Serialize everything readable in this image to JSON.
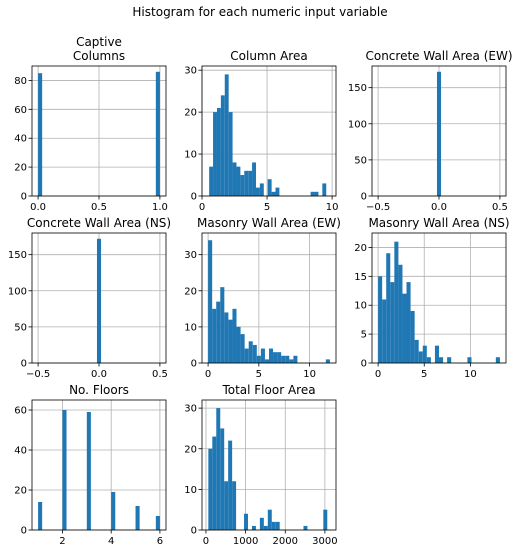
{
  "suptitle": "Histogram for each numeric input variable",
  "colors": {
    "bar": "#1f77b4",
    "grid": "#b0b0b0",
    "axis": "#000000"
  },
  "chart_data": [
    {
      "type": "bar",
      "title_lines": [
        "Captive",
        "Columns"
      ],
      "bins": {
        "start": 0,
        "width": 0.033333
      },
      "counts": [
        85,
        0,
        0,
        0,
        0,
        0,
        0,
        0,
        0,
        0,
        0,
        0,
        0,
        0,
        0,
        0,
        0,
        0,
        0,
        0,
        0,
        0,
        0,
        0,
        0,
        0,
        0,
        0,
        0,
        86
      ],
      "xlim": [
        -0.05,
        1.05
      ],
      "ylim": [
        0,
        90
      ],
      "xticks": [
        0.0,
        0.5,
        1.0
      ],
      "xtick_labels": [
        "0.0",
        "0.5",
        "1.0"
      ],
      "yticks": [
        0,
        20,
        40,
        60,
        80
      ],
      "ytick_labels": [
        "0",
        "20",
        "40",
        "60",
        "80"
      ],
      "grid": true
    },
    {
      "type": "bar",
      "title_lines": [
        "Column Area"
      ],
      "bins": {
        "start": 0.55,
        "width": 0.3
      },
      "counts": [
        7,
        20,
        21,
        24,
        29,
        20,
        8,
        7,
        5,
        6,
        6,
        8,
        2,
        3,
        0,
        4,
        1,
        2,
        0,
        0,
        0,
        0,
        0,
        0,
        0,
        0,
        1,
        1,
        0,
        3
      ],
      "xlim": [
        0,
        10.3
      ],
      "ylim": [
        0,
        31
      ],
      "xticks": [
        0,
        5,
        10
      ],
      "xtick_labels": [
        "0",
        "5",
        "10"
      ],
      "yticks": [
        0,
        10,
        20,
        30
      ],
      "ytick_labels": [
        "0",
        "10",
        "20",
        "30"
      ],
      "grid": true
    },
    {
      "type": "bar",
      "title_lines": [
        "Concrete Wall Area (EW)"
      ],
      "bins": {
        "start": -0.016667,
        "width": 0.033333
      },
      "counts": [
        172
      ],
      "xlim": [
        -0.55,
        0.55
      ],
      "ylim": [
        0,
        180
      ],
      "xticks": [
        -0.5,
        0.0,
        0.5
      ],
      "xtick_labels": [
        "−0.5",
        "0.0",
        "0.5"
      ],
      "yticks": [
        0,
        50,
        100,
        150
      ],
      "ytick_labels": [
        "0",
        "50",
        "100",
        "150"
      ],
      "grid": true
    },
    {
      "type": "bar",
      "title_lines": [
        "Concrete Wall Area (NS)"
      ],
      "bins": {
        "start": -0.016667,
        "width": 0.033333
      },
      "counts": [
        172
      ],
      "xlim": [
        -0.55,
        0.55
      ],
      "ylim": [
        0,
        180
      ],
      "xticks": [
        -0.5,
        0.0,
        0.5
      ],
      "xtick_labels": [
        "−0.5",
        "0.0",
        "0.5"
      ],
      "yticks": [
        0,
        50,
        100,
        150
      ],
      "ytick_labels": [
        "0",
        "50",
        "100",
        "150"
      ],
      "grid": true
    },
    {
      "type": "bar",
      "title_lines": [
        "Masonry Wall Area (EW)"
      ],
      "bins": {
        "start": 0,
        "width": 0.4
      },
      "counts": [
        34,
        15,
        17,
        21,
        14,
        12,
        15,
        10,
        8,
        4,
        6,
        5,
        2,
        4,
        1,
        4,
        3,
        3,
        2,
        2,
        1,
        2,
        0,
        0,
        0,
        0,
        0,
        0,
        0,
        1
      ],
      "xlim": [
        -0.6,
        12.6
      ],
      "ylim": [
        0,
        36
      ],
      "xticks": [
        0,
        5,
        10
      ],
      "xtick_labels": [
        "0",
        "5",
        "10"
      ],
      "yticks": [
        0,
        10,
        20,
        30
      ],
      "ytick_labels": [
        "0",
        "10",
        "20",
        "30"
      ],
      "grid": true
    },
    {
      "type": "bar",
      "title_lines": [
        "Masonry Wall Area (NS)"
      ],
      "bins": {
        "start": 0,
        "width": 0.44
      },
      "counts": [
        15,
        11,
        19,
        14,
        21,
        17,
        12,
        14,
        9,
        4,
        2,
        3,
        1,
        0,
        3,
        1,
        0,
        1,
        0,
        0,
        0,
        0,
        1,
        0,
        0,
        0,
        0,
        0,
        0,
        1
      ],
      "xlim": [
        -0.66,
        13.86
      ],
      "ylim": [
        0,
        22.5
      ],
      "xticks": [
        0,
        5,
        10
      ],
      "xtick_labels": [
        "0",
        "5",
        "10"
      ],
      "yticks": [
        0,
        5,
        10,
        15,
        20
      ],
      "ytick_labels": [
        "0",
        "5",
        "10",
        "15",
        "20"
      ],
      "grid": true
    },
    {
      "type": "bar",
      "title_lines": [
        "No. Floors"
      ],
      "bins": {
        "start": 1,
        "width": 0.166667
      },
      "counts": [
        14,
        0,
        0,
        0,
        0,
        0,
        60,
        0,
        0,
        0,
        0,
        0,
        59,
        0,
        0,
        0,
        0,
        0,
        19,
        0,
        0,
        0,
        0,
        0,
        12,
        0,
        0,
        0,
        0,
        7
      ],
      "xlim": [
        0.75,
        6.25
      ],
      "ylim": [
        0,
        65
      ],
      "xticks": [
        2,
        4,
        6
      ],
      "xtick_labels": [
        "2",
        "4",
        "6"
      ],
      "yticks": [
        0,
        20,
        40,
        60
      ],
      "ytick_labels": [
        "0",
        "20",
        "40",
        "60"
      ],
      "grid": true
    },
    {
      "type": "bar",
      "title_lines": [
        "Total Floor Area"
      ],
      "bins": {
        "start": 60,
        "width": 100
      },
      "counts": [
        20,
        23,
        30,
        25,
        12,
        22,
        12,
        0,
        0,
        4,
        0,
        1,
        0,
        3,
        1,
        5,
        2,
        2,
        0,
        0,
        0,
        0,
        0,
        0,
        1,
        0,
        0,
        0,
        0,
        5
      ],
      "xlim": [
        -100,
        3280
      ],
      "ylim": [
        0,
        32
      ],
      "xticks": [
        0,
        1000,
        2000,
        3000
      ],
      "xtick_labels": [
        "0",
        "1000",
        "2000",
        "3000"
      ],
      "yticks": [
        0,
        10,
        20,
        30
      ],
      "ytick_labels": [
        "0",
        "10",
        "20",
        "30"
      ],
      "grid": true
    }
  ]
}
